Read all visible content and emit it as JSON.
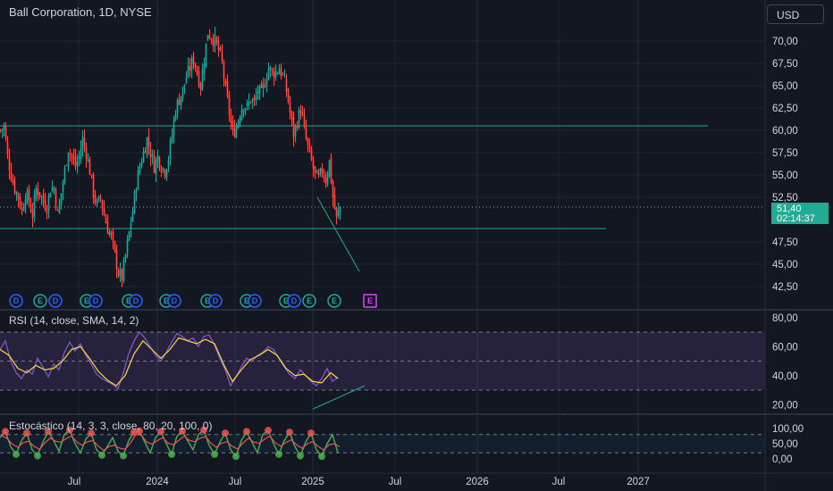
{
  "header": {
    "title": "Ball Corporation, 1D, NYSE"
  },
  "currency_button": {
    "label": "USD"
  },
  "price_badge": {
    "price": "51,40",
    "countdown": "02:14:37",
    "color": "#22ab94"
  },
  "indicators": {
    "rsi_label": "RSI (14, close, SMA, 14, 2)",
    "stoch_label": "Estocástico (14, 3, 3, close, 80, 20, 100, 0)"
  },
  "main_axis": {
    "ticks": [
      "70,00",
      "67,50",
      "65,00",
      "62,50",
      "60,00",
      "57,50",
      "55,00",
      "52,50",
      "47,50",
      "45,00",
      "42,50"
    ]
  },
  "rsi_axis": {
    "ticks": [
      "80,00",
      "60,00",
      "40,00",
      "20,00"
    ]
  },
  "stoch_axis": {
    "ticks": [
      "100,00",
      "50,00",
      "0,00"
    ]
  },
  "time_axis": {
    "labels": [
      "Jul",
      "2024",
      "Jul",
      "2025",
      "Jul",
      "2026",
      "Jul",
      "2027"
    ]
  },
  "events": {
    "markers": [
      {
        "letter": "D",
        "type": "dividend"
      },
      {
        "letter": "E",
        "type": "earnings"
      },
      {
        "letter": "D",
        "type": "dividend"
      },
      {
        "letter": "E",
        "type": "earnings"
      },
      {
        "letter": "D",
        "type": "dividend"
      },
      {
        "letter": "E",
        "type": "earnings"
      },
      {
        "letter": "D",
        "type": "dividend"
      },
      {
        "letter": "E",
        "type": "earnings"
      },
      {
        "letter": "D",
        "type": "dividend"
      },
      {
        "letter": "E",
        "type": "earnings"
      },
      {
        "letter": "D",
        "type": "dividend"
      },
      {
        "letter": "E",
        "type": "earnings"
      },
      {
        "letter": "D",
        "type": "dividend"
      },
      {
        "letter": "E",
        "type": "earnings"
      },
      {
        "letter": "D",
        "type": "dividend"
      },
      {
        "letter": "E",
        "type": "earnings"
      },
      {
        "letter": "E",
        "type": "earnings"
      },
      {
        "letter": "E",
        "type": "earnings-upcoming"
      }
    ]
  },
  "colors": {
    "background": "#131722",
    "grid": "#232632",
    "up": "#26a69a",
    "down": "#ef5350",
    "trendline": "#26a69a",
    "rsi": "#7e57c2",
    "rsi_ma": "#fdd835",
    "rsi_band": "#7e57c2",
    "stoch_k": "#4caf50",
    "stoch_d": "#ef5350"
  },
  "chart_data": {
    "type": "candlestick",
    "symbol": "Ball Corporation",
    "interval": "1D",
    "exchange": "NYSE",
    "last_price": 51.4,
    "price_range": [
      41.5,
      72.0
    ],
    "price_path": [
      [
        0,
        60.0
      ],
      [
        4,
        60.5
      ],
      [
        8,
        57.0
      ],
      [
        12,
        55.0
      ],
      [
        16,
        53.5
      ],
      [
        20,
        52.5
      ],
      [
        24,
        51.0
      ],
      [
        28,
        53.0
      ],
      [
        32,
        52.0
      ],
      [
        36,
        50.5
      ],
      [
        40,
        53.5
      ],
      [
        44,
        53.0
      ],
      [
        48,
        52.0
      ],
      [
        52,
        51.5
      ],
      [
        56,
        53.5
      ],
      [
        60,
        53.5
      ],
      [
        64,
        50.5
      ],
      [
        68,
        53.0
      ],
      [
        72,
        55.5
      ],
      [
        76,
        58.0
      ],
      [
        80,
        57.0
      ],
      [
        84,
        56.0
      ],
      [
        88,
        57.0
      ],
      [
        92,
        59.0
      ],
      [
        96,
        57.5
      ],
      [
        100,
        55.5
      ],
      [
        104,
        53.0
      ],
      [
        108,
        51.5
      ],
      [
        112,
        52.5
      ],
      [
        116,
        50.5
      ],
      [
        120,
        49.0
      ],
      [
        124,
        48.0
      ],
      [
        128,
        46.0
      ],
      [
        132,
        44.0
      ],
      [
        136,
        43.5
      ],
      [
        140,
        46.0
      ],
      [
        144,
        48.5
      ],
      [
        148,
        51.0
      ],
      [
        152,
        54.0
      ],
      [
        156,
        56.0
      ],
      [
        160,
        57.5
      ],
      [
        164,
        59.0
      ],
      [
        168,
        57.5
      ],
      [
        172,
        56.0
      ],
      [
        176,
        57.0
      ],
      [
        180,
        56.0
      ],
      [
        184,
        55.5
      ],
      [
        188,
        57.0
      ],
      [
        192,
        59.5
      ],
      [
        196,
        62.5
      ],
      [
        200,
        63.5
      ],
      [
        204,
        64.5
      ],
      [
        208,
        66.0
      ],
      [
        212,
        67.0
      ],
      [
        216,
        68.0
      ],
      [
        220,
        66.5
      ],
      [
        224,
        65.0
      ],
      [
        228,
        68.0
      ],
      [
        232,
        71.0
      ],
      [
        236,
        70.5
      ],
      [
        240,
        70.0
      ],
      [
        244,
        69.0
      ],
      [
        248,
        67.5
      ],
      [
        252,
        64.5
      ],
      [
        256,
        62.0
      ],
      [
        260,
        59.5
      ],
      [
        264,
        60.5
      ],
      [
        268,
        62.0
      ],
      [
        272,
        63.0
      ],
      [
        276,
        62.5
      ],
      [
        280,
        63.5
      ],
      [
        284,
        63.0
      ],
      [
        288,
        64.5
      ],
      [
        292,
        64.0
      ],
      [
        296,
        65.5
      ],
      [
        300,
        67.0
      ],
      [
        304,
        66.5
      ],
      [
        308,
        66.5
      ],
      [
        312,
        67.0
      ],
      [
        316,
        66.0
      ],
      [
        320,
        64.5
      ],
      [
        324,
        62.0
      ],
      [
        328,
        59.5
      ],
      [
        332,
        61.0
      ],
      [
        336,
        62.5
      ],
      [
        340,
        60.0
      ],
      [
        344,
        58.0
      ],
      [
        348,
        56.5
      ],
      [
        352,
        55.0
      ],
      [
        356,
        54.5
      ],
      [
        360,
        55.5
      ],
      [
        364,
        54.5
      ],
      [
        368,
        56.5
      ],
      [
        372,
        52.5
      ],
      [
        376,
        50.0
      ],
      [
        380,
        51.4
      ]
    ],
    "horizontal_levels": [
      60.5,
      49.0
    ],
    "trendline": {
      "start": [
        355,
        52.5
      ],
      "end": [
        402,
        44.2
      ]
    },
    "rsi": {
      "upper": 70,
      "lower": 30,
      "middle": 50,
      "range": [
        15,
        82
      ],
      "values": [
        [
          0,
          58
        ],
        [
          6,
          64
        ],
        [
          12,
          50
        ],
        [
          18,
          42
        ],
        [
          24,
          38
        ],
        [
          30,
          44
        ],
        [
          36,
          41
        ],
        [
          42,
          52
        ],
        [
          48,
          46
        ],
        [
          54,
          39
        ],
        [
          60,
          48
        ],
        [
          66,
          44
        ],
        [
          72,
          56
        ],
        [
          78,
          63
        ],
        [
          84,
          57
        ],
        [
          90,
          62
        ],
        [
          96,
          54
        ],
        [
          102,
          48
        ],
        [
          108,
          41
        ],
        [
          114,
          38
        ],
        [
          120,
          36
        ],
        [
          126,
          34
        ],
        [
          132,
          31
        ],
        [
          138,
          42
        ],
        [
          144,
          55
        ],
        [
          150,
          64
        ],
        [
          156,
          70
        ],
        [
          162,
          66
        ],
        [
          168,
          60
        ],
        [
          174,
          54
        ],
        [
          180,
          50
        ],
        [
          186,
          56
        ],
        [
          192,
          63
        ],
        [
          198,
          69
        ],
        [
          204,
          67
        ],
        [
          210,
          64
        ],
        [
          216,
          66
        ],
        [
          222,
          60
        ],
        [
          228,
          67
        ],
        [
          234,
          68
        ],
        [
          240,
          61
        ],
        [
          246,
          52
        ],
        [
          252,
          44
        ],
        [
          258,
          33
        ],
        [
          264,
          39
        ],
        [
          270,
          46
        ],
        [
          276,
          52
        ],
        [
          282,
          50
        ],
        [
          288,
          54
        ],
        [
          294,
          56
        ],
        [
          300,
          60
        ],
        [
          306,
          58
        ],
        [
          312,
          52
        ],
        [
          318,
          46
        ],
        [
          324,
          41
        ],
        [
          330,
          38
        ],
        [
          336,
          44
        ],
        [
          342,
          40
        ],
        [
          348,
          36
        ],
        [
          354,
          33
        ],
        [
          360,
          38
        ],
        [
          366,
          45
        ],
        [
          372,
          36
        ],
        [
          378,
          39
        ]
      ],
      "ma": [
        [
          0,
          58
        ],
        [
          10,
          54
        ],
        [
          20,
          45
        ],
        [
          30,
          42
        ],
        [
          40,
          47
        ],
        [
          50,
          44
        ],
        [
          60,
          45
        ],
        [
          70,
          50
        ],
        [
          80,
          58
        ],
        [
          90,
          60
        ],
        [
          100,
          52
        ],
        [
          110,
          43
        ],
        [
          120,
          37
        ],
        [
          130,
          33
        ],
        [
          140,
          40
        ],
        [
          150,
          55
        ],
        [
          160,
          64
        ],
        [
          170,
          58
        ],
        [
          180,
          52
        ],
        [
          190,
          58
        ],
        [
          200,
          66
        ],
        [
          210,
          64
        ],
        [
          220,
          62
        ],
        [
          230,
          65
        ],
        [
          240,
          62
        ],
        [
          250,
          48
        ],
        [
          260,
          36
        ],
        [
          270,
          44
        ],
        [
          280,
          51
        ],
        [
          290,
          54
        ],
        [
          300,
          58
        ],
        [
          310,
          54
        ],
        [
          320,
          45
        ],
        [
          330,
          40
        ],
        [
          340,
          41
        ],
        [
          350,
          36
        ],
        [
          360,
          35
        ],
        [
          370,
          42
        ],
        [
          378,
          38
        ]
      ],
      "divergence_line": {
        "start": [
          350,
          17
        ],
        "end": [
          408,
          33
        ]
      }
    },
    "stochastic": {
      "upper": 80,
      "lower": 20,
      "range": [
        -5,
        110
      ],
      "k": [
        [
          0,
          70
        ],
        [
          6,
          90
        ],
        [
          12,
          40
        ],
        [
          18,
          15
        ],
        [
          24,
          60
        ],
        [
          30,
          85
        ],
        [
          36,
          30
        ],
        [
          42,
          10
        ],
        [
          48,
          55
        ],
        [
          54,
          90
        ],
        [
          60,
          60
        ],
        [
          66,
          25
        ],
        [
          72,
          80
        ],
        [
          78,
          95
        ],
        [
          84,
          50
        ],
        [
          90,
          20
        ],
        [
          96,
          65
        ],
        [
          102,
          85
        ],
        [
          108,
          30
        ],
        [
          114,
          12
        ],
        [
          120,
          40
        ],
        [
          126,
          70
        ],
        [
          132,
          25
        ],
        [
          138,
          10
        ],
        [
          144,
          60
        ],
        [
          150,
          88
        ],
        [
          156,
          92
        ],
        [
          162,
          55
        ],
        [
          168,
          20
        ],
        [
          174,
          70
        ],
        [
          180,
          90
        ],
        [
          186,
          50
        ],
        [
          192,
          15
        ],
        [
          198,
          75
        ],
        [
          204,
          92
        ],
        [
          210,
          60
        ],
        [
          216,
          30
        ],
        [
          222,
          80
        ],
        [
          228,
          95
        ],
        [
          234,
          45
        ],
        [
          240,
          15
        ],
        [
          246,
          55
        ],
        [
          252,
          85
        ],
        [
          258,
          30
        ],
        [
          264,
          8
        ],
        [
          270,
          60
        ],
        [
          276,
          90
        ],
        [
          282,
          55
        ],
        [
          288,
          20
        ],
        [
          294,
          80
        ],
        [
          300,
          94
        ],
        [
          306,
          50
        ],
        [
          312,
          15
        ],
        [
          318,
          60
        ],
        [
          324,
          88
        ],
        [
          330,
          40
        ],
        [
          336,
          10
        ],
        [
          342,
          55
        ],
        [
          348,
          85
        ],
        [
          354,
          30
        ],
        [
          360,
          8
        ],
        [
          366,
          50
        ],
        [
          372,
          80
        ],
        [
          378,
          20
        ]
      ]
    }
  }
}
